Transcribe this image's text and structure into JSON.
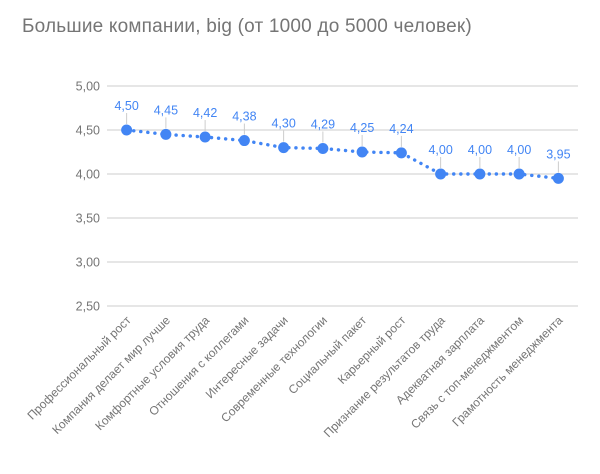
{
  "chart_data": {
    "type": "line",
    "title": "Большие компании, big (от 1000 до 5000 человек)",
    "categories": [
      "Профессиональный рост",
      "Компания делает мир лучше",
      "Комфортные условия труда",
      "Отношения с коллегами",
      "Интересные задачи",
      "Современные технологии",
      "Социальный пакет",
      "Карьерный рост",
      "Признание результатов труда",
      "Адекватная зарплата",
      "Связь с топ-менеджментом",
      "Грамотность менеджмента"
    ],
    "values": [
      4.5,
      4.45,
      4.42,
      4.38,
      4.3,
      4.29,
      4.25,
      4.24,
      4.0,
      4.0,
      4.0,
      3.95
    ],
    "value_labels": [
      "4,50",
      "4,45",
      "4,42",
      "4,38",
      "4,30",
      "4,29",
      "4,25",
      "4,24",
      "4,00",
      "4,00",
      "4,00",
      "3,95"
    ],
    "xlabel": "",
    "ylabel": "",
    "ylim": [
      2.5,
      5.0
    ],
    "y_ticks": [
      5.0,
      4.5,
      4.0,
      3.5,
      3.0,
      2.5
    ],
    "y_tick_labels": [
      "5,00",
      "4,50",
      "4,00",
      "3,50",
      "3,00",
      "2,50"
    ],
    "grid": true,
    "legend": "none",
    "line_style": "dotted",
    "marker": "circle",
    "colors": {
      "series": "#4285f4",
      "data_label": "#4285f4",
      "grid": "#cccccc",
      "callout": "#cccccc",
      "axis_text": "#757575",
      "title_text": "#757575",
      "background": "#ffffff"
    }
  }
}
